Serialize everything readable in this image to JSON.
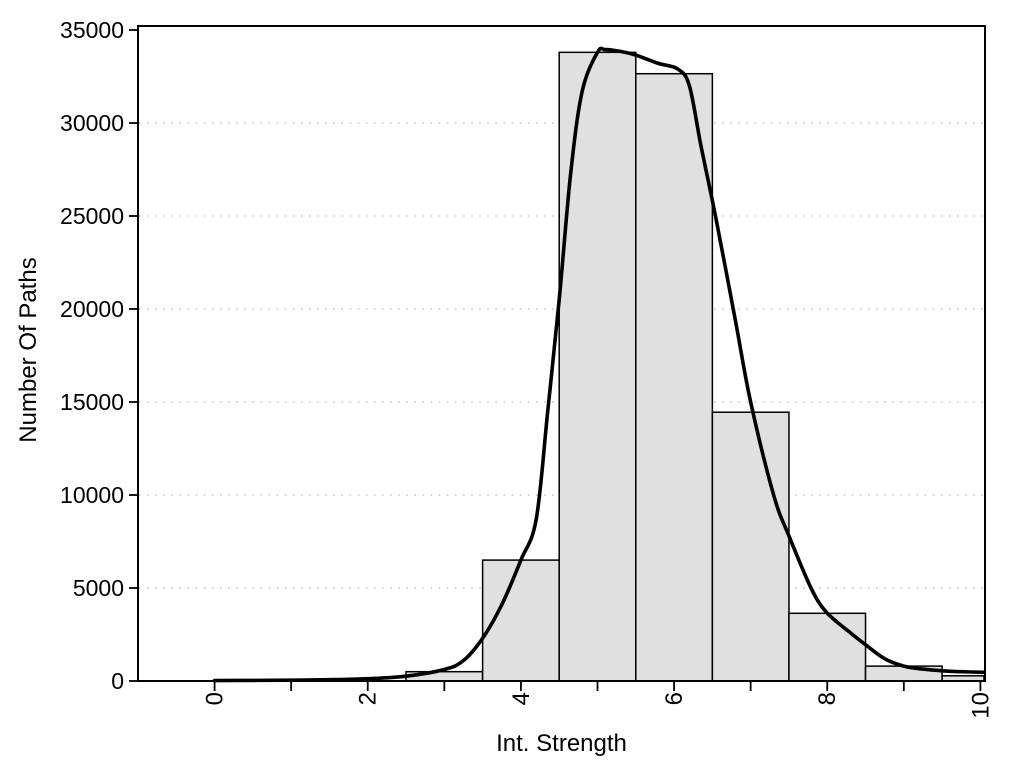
{
  "chart_data": {
    "type": "bar",
    "subtype": "histogram-with-smoothed-curve",
    "title": "",
    "xlabel": "Int. Strength",
    "ylabel": "Number Of Paths",
    "xlim": [
      -1.0,
      10.06
    ],
    "ylim": [
      0,
      35215
    ],
    "x_tick_positions": [
      0,
      1,
      2,
      3,
      4,
      5,
      6,
      7,
      8,
      9,
      10
    ],
    "x_tick_labeled": [
      0,
      2,
      4,
      6,
      8,
      10
    ],
    "y_ticks": [
      0,
      5000,
      10000,
      15000,
      20000,
      25000,
      30000,
      35000
    ],
    "grid": {
      "show_horizontal": true,
      "y_values": [
        5000,
        10000,
        15000,
        20000,
        25000,
        30000
      ],
      "line_style": "dotted",
      "color": "#c6c6c6"
    },
    "legend": "none",
    "frame": "full-box",
    "histogram": {
      "bin_edges": [
        2.5,
        3.5,
        4.5,
        5.5,
        6.5,
        7.5,
        8.5,
        9.5,
        10.5
      ],
      "counts": [
        500,
        6500,
        33800,
        32650,
        14450,
        3640,
        800,
        280
      ],
      "fill_color": "#e0e0e0",
      "stroke_color": "#000000"
    },
    "curve": {
      "name": "smoothed-frequency-curve",
      "color": "#000000",
      "stroke_width": 3.6,
      "points": [
        [
          0,
          25
        ],
        [
          0.5,
          32
        ],
        [
          1,
          45
        ],
        [
          1.5,
          70
        ],
        [
          2,
          125
        ],
        [
          2.5,
          260
        ],
        [
          3,
          620
        ],
        [
          3.25,
          1100
        ],
        [
          3.5,
          2300
        ],
        [
          3.75,
          4100
        ],
        [
          4,
          6500
        ],
        [
          4.2,
          8700
        ],
        [
          4.35,
          14500
        ],
        [
          4.5,
          20500
        ],
        [
          4.65,
          27300
        ],
        [
          4.8,
          31700
        ],
        [
          5.0,
          33800
        ],
        [
          5.1,
          33950
        ],
        [
          5.3,
          33850
        ],
        [
          5.5,
          33650
        ],
        [
          5.8,
          33200
        ],
        [
          6.05,
          32900
        ],
        [
          6.2,
          32000
        ],
        [
          6.35,
          28800
        ],
        [
          6.55,
          24800
        ],
        [
          6.8,
          19400
        ],
        [
          7.0,
          15000
        ],
        [
          7.3,
          10000
        ],
        [
          7.5,
          7800
        ],
        [
          7.8,
          4900
        ],
        [
          8.0,
          3650
        ],
        [
          8.3,
          2600
        ],
        [
          8.5,
          1950
        ],
        [
          8.75,
          1200
        ],
        [
          9.0,
          800
        ],
        [
          9.25,
          640
        ],
        [
          9.5,
          550
        ],
        [
          9.75,
          500
        ],
        [
          10.05,
          465
        ]
      ]
    },
    "text_color": "#000000",
    "background_color": "#ffffff"
  }
}
